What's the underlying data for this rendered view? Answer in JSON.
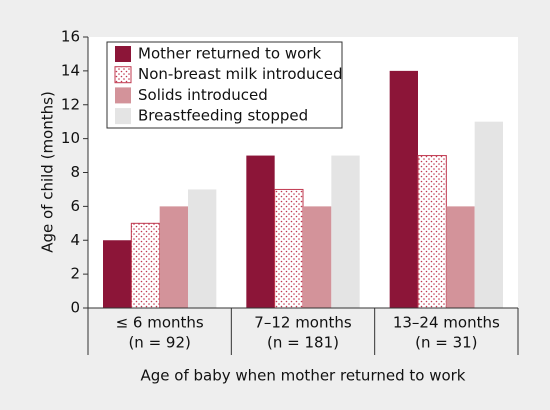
{
  "chart_data": {
    "type": "bar",
    "ylabel": "Age of child (months)",
    "xlabel": "Age of baby when mother returned to work",
    "categories": [
      [
        "≤ 6 months",
        "(n = 92)"
      ],
      [
        "7–12 months",
        "(n = 181)"
      ],
      [
        "13–24 months",
        "(n = 31)"
      ]
    ],
    "series": [
      {
        "name": "Mother returned to work",
        "color": "#8c1538",
        "values": [
          4,
          9,
          14
        ]
      },
      {
        "name": "Non-breast milk introduced",
        "color": "#c0384f",
        "pattern": "dots",
        "values": [
          5,
          7,
          9
        ]
      },
      {
        "name": "Solids introduced",
        "color": "#d3939a",
        "values": [
          6,
          6,
          6
        ]
      },
      {
        "name": "Breastfeeding stopped",
        "color": "#e4e4e4",
        "values": [
          7,
          9,
          11
        ]
      }
    ],
    "ylim": [
      0,
      16
    ],
    "yticks": [
      0,
      2,
      4,
      6,
      8,
      10,
      12,
      14,
      16
    ],
    "legend": "upper-left"
  }
}
